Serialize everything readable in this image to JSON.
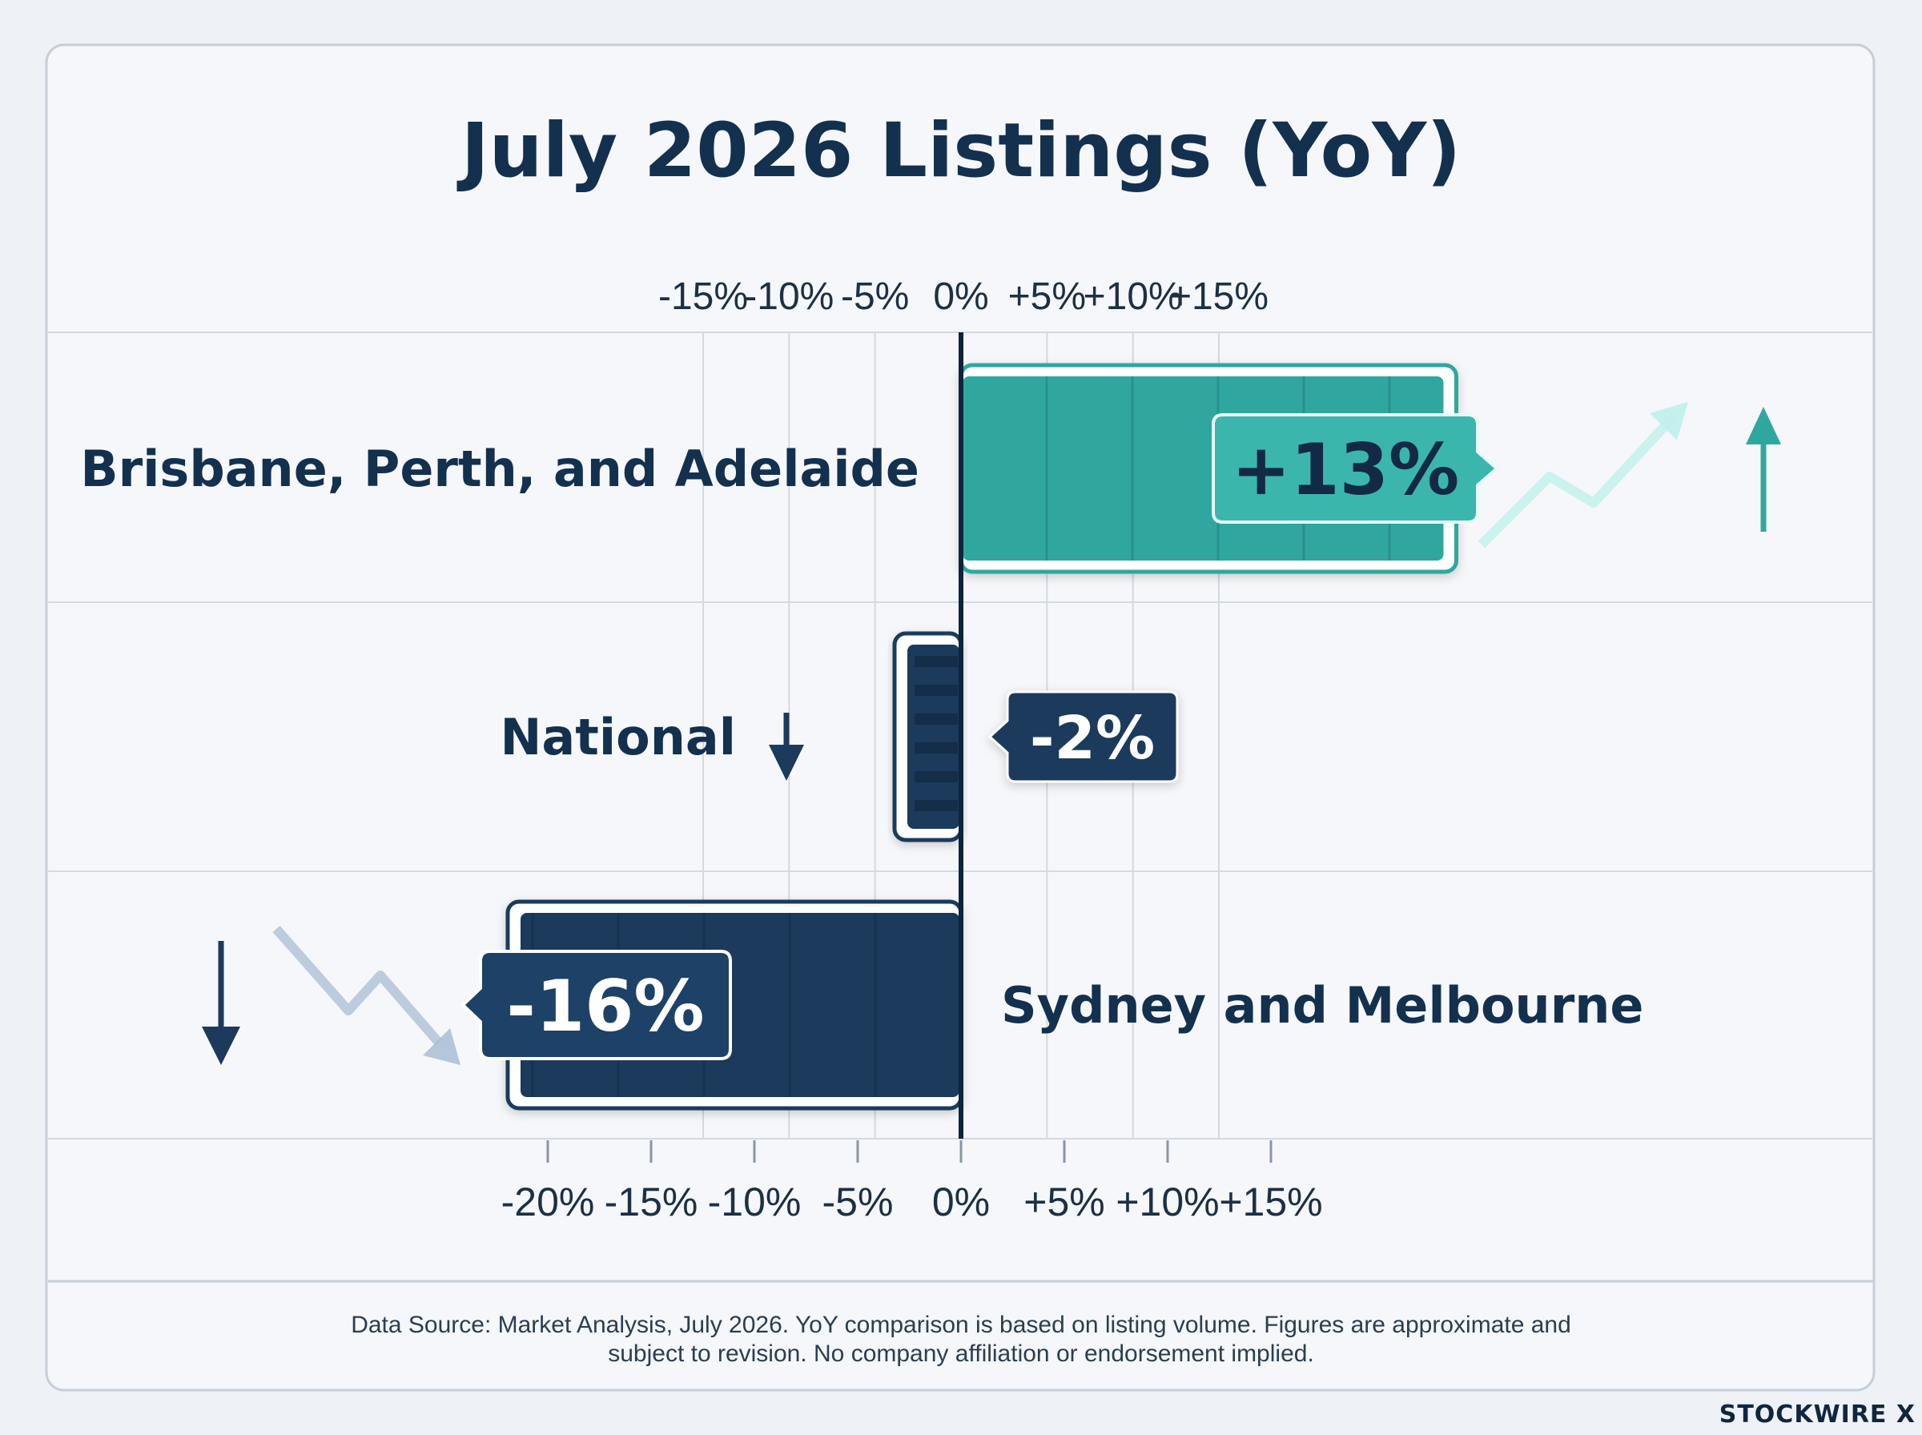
{
  "chart_data": {
    "type": "bar",
    "orientation": "horizontal",
    "title": "July 2026 Listings (YoY)",
    "categories": [
      "Brisbane, Perth, and Adelaide",
      "National",
      "Sydney and Melbourne"
    ],
    "values": [
      13,
      -2,
      -16
    ],
    "value_labels": [
      "+13%",
      "-2%",
      "-16%"
    ],
    "top_axis_ticks": [
      {
        "value": -15,
        "label": "-15%"
      },
      {
        "value": -10,
        "label": "-10%"
      },
      {
        "value": -5,
        "label": "-5%"
      },
      {
        "value": 0,
        "label": "0%"
      },
      {
        "value": 5,
        "label": "+5%"
      },
      {
        "value": 10,
        "label": "+10%"
      },
      {
        "value": 15,
        "label": "+15%"
      }
    ],
    "bottom_axis_ticks": [
      {
        "value": -20,
        "label": "-20%"
      },
      {
        "value": -15,
        "label": "-15%"
      },
      {
        "value": -10,
        "label": "-10%"
      },
      {
        "value": -5,
        "label": "-5%"
      },
      {
        "value": 0,
        "label": "0%"
      },
      {
        "value": 5,
        "label": "+5%"
      },
      {
        "value": 10,
        "label": "+10%"
      },
      {
        "value": 15,
        "label": "+15%"
      }
    ],
    "grid": true,
    "colors": {
      "positive": "#2fa79f",
      "negative": "#1b3a5c",
      "text": "#14304f",
      "grid": "#d3d9e2",
      "card": "#f5f7fa"
    }
  },
  "footer": {
    "source_line1": "Data Source: Market Analysis, July 2026. YoY comparison is based on listing volume. Figures are approximate and",
    "source_line2": "subject to revision. No company affiliation or endorsement implied."
  },
  "brand": "STOCKWIRE X"
}
